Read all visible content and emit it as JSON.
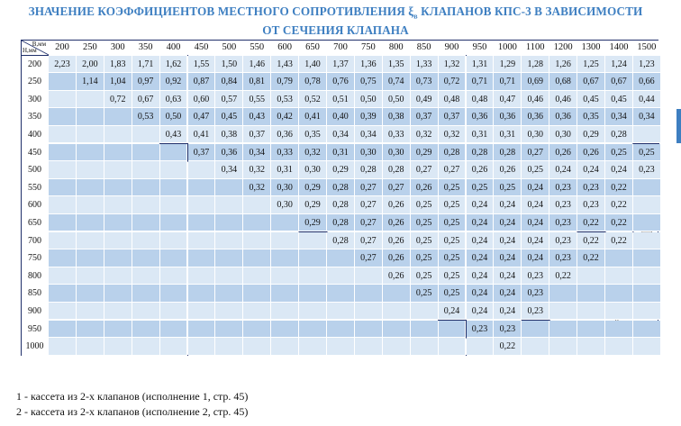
{
  "title": {
    "line1_pre": "ЗНАЧЕНИЕ КОЭФФИЦИЕНТОВ МЕСТНОГО СОПРОТИВЛЕНИЯ ξ",
    "line1_sub": "в",
    "line1_post": " КЛАПАНОВ КПС-3 В ЗАВИСИМОСТИ",
    "line2": "ОТ СЕЧЕНИЯ КЛАПАНА"
  },
  "table": {
    "corner_width_label": "В,мм",
    "corner_height_label": "Н,мм",
    "columns": [
      "200",
      "250",
      "300",
      "350",
      "400",
      "450",
      "500",
      "550",
      "600",
      "650",
      "700",
      "750",
      "800",
      "850",
      "900",
      "950",
      "1000",
      "1100",
      "1200",
      "1300",
      "1400",
      "1500"
    ],
    "rows": [
      {
        "h": "200",
        "start": 0,
        "values": [
          "2,23",
          "2,00",
          "1,83",
          "1,71",
          "1,62",
          "1,55",
          "1,50",
          "1,46",
          "1,43",
          "1,40",
          "1,37",
          "1,36",
          "1,35",
          "1,33",
          "1,32",
          "1,31",
          "1,29",
          "1,28",
          "1,26",
          "1,25",
          "1,24",
          "1,23"
        ]
      },
      {
        "h": "250",
        "start": 1,
        "values": [
          "1,14",
          "1,04",
          "0,97",
          "0,92",
          "0,87",
          "0,84",
          "0,81",
          "0,79",
          "0,78",
          "0,76",
          "0,75",
          "0,74",
          "0,73",
          "0,72",
          "0,71",
          "0,71",
          "0,69",
          "0,68",
          "0,67",
          "0,67",
          "0,66"
        ]
      },
      {
        "h": "300",
        "start": 2,
        "values": [
          "0,72",
          "0,67",
          "0,63",
          "0,60",
          "0,57",
          "0,55",
          "0,53",
          "0,52",
          "0,51",
          "0,50",
          "0,50",
          "0,49",
          "0,48",
          "0,48",
          "0,47",
          "0,46",
          "0,46",
          "0,45",
          "0,45",
          "0,44"
        ]
      },
      {
        "h": "350",
        "start": 3,
        "values": [
          "0,53",
          "0,50",
          "0,47",
          "0,45",
          "0,43",
          "0,42",
          "0,41",
          "0,40",
          "0,39",
          "0,38",
          "0,37",
          "0,37",
          "0,36",
          "0,36",
          "0,36",
          "0,36",
          "0,35",
          "0,34",
          "0,34"
        ]
      },
      {
        "h": "400",
        "start": 4,
        "values": [
          "0,43",
          "0,41",
          "0,38",
          "0,37",
          "0,36",
          "0,35",
          "0,34",
          "0,34",
          "0,33",
          "0,32",
          "0,32",
          "0,31",
          "0,31",
          "0,30",
          "0,30",
          "0,29",
          "0,28"
        ]
      },
      {
        "h": "450",
        "start": 5,
        "values": [
          "0,37",
          "0,36",
          "0,34",
          "0,33",
          "0,32",
          "0,31",
          "0,30",
          "0,30",
          "0,29",
          "0,28",
          "0,28",
          "0,28",
          "0,27",
          "0,26",
          "0,26",
          "0,25",
          "0,25"
        ]
      },
      {
        "h": "500",
        "start": 6,
        "values": [
          "0,34",
          "0,32",
          "0,31",
          "0,30",
          "0,29",
          "0,28",
          "0,28",
          "0,27",
          "0,27",
          "0,26",
          "0,26",
          "0,25",
          "0,24",
          "0,24",
          "0,24",
          "0,23"
        ]
      },
      {
        "h": "550",
        "start": 7,
        "values": [
          "0,32",
          "0,30",
          "0,29",
          "0,28",
          "0,27",
          "0,27",
          "0,26",
          "0,25",
          "0,25",
          "0,25",
          "0,24",
          "0,23",
          "0,23",
          "0,22"
        ]
      },
      {
        "h": "600",
        "start": 8,
        "values": [
          "0,30",
          "0,29",
          "0,28",
          "0,27",
          "0,26",
          "0,25",
          "0,25",
          "0,24",
          "0,24",
          "0,24",
          "0,23",
          "0,23",
          "0,22"
        ]
      },
      {
        "h": "650",
        "start": 9,
        "values": [
          "0,29",
          "0,28",
          "0,27",
          "0,26",
          "0,25",
          "0,25",
          "0,24",
          "0,24",
          "0,24",
          "0,23",
          "0,22",
          "0,22"
        ]
      },
      {
        "h": "700",
        "start": 10,
        "values": [
          "0,28",
          "0,27",
          "0,26",
          "0,25",
          "0,25",
          "0,24",
          "0,24",
          "0,24",
          "0,23",
          "0,22",
          "0,22"
        ]
      },
      {
        "h": "750",
        "start": 11,
        "values": [
          "0,27",
          "0,26",
          "0,25",
          "0,25",
          "0,24",
          "0,24",
          "0,24",
          "0,23",
          "0,22"
        ]
      },
      {
        "h": "800",
        "start": 12,
        "values": [
          "0,26",
          "0,25",
          "0,25",
          "0,24",
          "0,24",
          "0,23",
          "0,22"
        ]
      },
      {
        "h": "850",
        "start": 13,
        "values": [
          "0,25",
          "0,25",
          "0,24",
          "0,24",
          "0,23"
        ]
      },
      {
        "h": "900",
        "start": 14,
        "values": [
          "0,24",
          "0,24",
          "0,24",
          "0,23"
        ]
      },
      {
        "h": "950",
        "start": 15,
        "values": [
          "0,23",
          "0,23"
        ]
      },
      {
        "h": "1000",
        "start": 16,
        "values": [
          "0,22"
        ]
      }
    ],
    "zone_labels": [
      "1",
      "2"
    ]
  },
  "legend": [
    "1 - кассета из 2-х клапанов (исполнение 1, стр. 45)",
    "2 - кассета из 2-х клапанов (исполнение 2, стр. 45)"
  ],
  "colors": {
    "title": "#3e7fc1",
    "light_band": "#dbe8f5",
    "dark_band": "#b9d1eb",
    "border": "#1f2f6a"
  }
}
